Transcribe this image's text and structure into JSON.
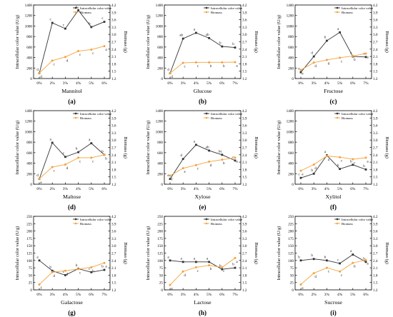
{
  "figure": {
    "legend_labels": {
      "color": "Intracellular color value",
      "biomass": "Biomass"
    },
    "y1_label": "Intracellular color value (U/g)",
    "y2_label": "Biomass (g)",
    "colors": {
      "color_series": "#333333",
      "biomass_series": "#f5a23c",
      "axis": "#000000"
    }
  },
  "chart_data": [
    {
      "type": "line",
      "panel": "(a)",
      "xlabel": "Mannitol",
      "categories": [
        "0%",
        "2%",
        "3%",
        "4%",
        "5%",
        "6%"
      ],
      "y1lim": [
        0,
        1400
      ],
      "y1ticks": [
        0,
        200,
        400,
        600,
        800,
        1000,
        1200,
        1400
      ],
      "y2lim": [
        1.2,
        4.2
      ],
      "y2ticks": [
        1.2,
        1.5,
        1.8,
        2.1,
        2.4,
        2.7,
        3.0,
        3.3,
        3.6,
        3.9,
        4.2
      ],
      "series": [
        {
          "name": "Intracellular color value",
          "axis": "left",
          "values": [
            100,
            1060,
            950,
            1300,
            980,
            1080
          ],
          "labels": [
            "d",
            "c",
            "c",
            "a",
            "b",
            "c"
          ]
        },
        {
          "name": "Biomass",
          "axis": "right",
          "values": [
            1.42,
            1.93,
            2.08,
            2.32,
            2.38,
            2.52
          ],
          "labels": [
            "d",
            "c",
            "d",
            "c",
            "c",
            "a"
          ]
        }
      ]
    },
    {
      "type": "line",
      "panel": "(b)",
      "xlabel": "Glucose",
      "categories": [
        "0%",
        "3%",
        "4%",
        "5%",
        "6%",
        "7%"
      ],
      "y1lim": [
        0,
        1400
      ],
      "y1ticks": [
        0,
        200,
        400,
        600,
        800,
        1000,
        1200,
        1400
      ],
      "y2lim": [
        1.2,
        4.2
      ],
      "y2ticks": [
        1.2,
        1.5,
        1.8,
        2.1,
        2.4,
        2.7,
        3.0,
        3.3,
        3.6,
        3.9,
        4.2
      ],
      "series": [
        {
          "name": "Intracellular color value",
          "axis": "left",
          "values": [
            100,
            760,
            870,
            770,
            610,
            590
          ],
          "labels": [
            "d",
            "ab",
            "a",
            "ab",
            "b",
            "b"
          ]
        },
        {
          "name": "Biomass",
          "axis": "right",
          "values": [
            1.42,
            1.84,
            1.86,
            1.86,
            1.86,
            1.87
          ],
          "labels": [
            "d",
            "c",
            "c",
            "b",
            "b",
            "a"
          ]
        }
      ]
    },
    {
      "type": "line",
      "panel": "(c)",
      "xlabel": "Fructose",
      "categories": [
        "0%",
        "3%",
        "4%",
        "5%",
        "6%",
        "7%"
      ],
      "y1lim": [
        0,
        1400
      ],
      "y1ticks": [
        0,
        200,
        400,
        600,
        800,
        1000,
        1200,
        1400
      ],
      "y2lim": [
        1.2,
        4.2
      ],
      "y2ticks": [
        1.2,
        1.5,
        1.8,
        2.1,
        2.4,
        2.7,
        3.0,
        3.3,
        3.6,
        3.9,
        4.2
      ],
      "series": [
        {
          "name": "Intracellular color value",
          "axis": "left",
          "values": [
            120,
            420,
            720,
            880,
            420,
            410
          ],
          "labels": [
            "e",
            "d",
            "b",
            "a",
            "c",
            "c"
          ]
        },
        {
          "name": "Biomass",
          "axis": "right",
          "values": [
            1.55,
            1.85,
            1.96,
            2.05,
            2.12,
            2.22
          ],
          "labels": [
            "e",
            "d",
            "d",
            "c",
            "b",
            "a"
          ]
        }
      ]
    },
    {
      "type": "line",
      "panel": "(d)",
      "xlabel": "Maltose",
      "categories": [
        "0%",
        "2%",
        "3%",
        "4%",
        "5%",
        "6%"
      ],
      "y1lim": [
        0,
        1400
      ],
      "y1ticks": [
        0,
        200,
        400,
        600,
        800,
        1000,
        1200,
        1400
      ],
      "y2lim": [
        1.2,
        4.2
      ],
      "y2ticks": [
        1.2,
        1.5,
        1.8,
        2.1,
        2.4,
        2.7,
        3.0,
        3.3,
        3.6,
        3.9,
        4.2
      ],
      "series": [
        {
          "name": "Intracellular color value",
          "axis": "left",
          "values": [
            100,
            790,
            520,
            610,
            780,
            560
          ],
          "labels": [
            "d",
            "a",
            "c",
            "b",
            "a",
            "b"
          ]
        },
        {
          "name": "Biomass",
          "axis": "right",
          "values": [
            1.42,
            1.9,
            2.0,
            2.28,
            2.28,
            2.4
          ],
          "labels": [
            "e",
            "c",
            "d",
            "c",
            "c",
            "b"
          ]
        }
      ]
    },
    {
      "type": "line",
      "panel": "(e)",
      "xlabel": "Xylose",
      "categories": [
        "0%",
        "3%",
        "4%",
        "5%",
        "6%",
        "7%"
      ],
      "y1lim": [
        0,
        1400
      ],
      "y1ticks": [
        0,
        200,
        400,
        600,
        800,
        1000,
        1200,
        1400
      ],
      "y2lim": [
        1.2,
        4.2
      ],
      "y2ticks": [
        1.2,
        1.5,
        1.8,
        2.1,
        2.4,
        2.7,
        3.0,
        3.3,
        3.6,
        3.9,
        4.2
      ],
      "series": [
        {
          "name": "Intracellular color value",
          "axis": "left",
          "values": [
            100,
            480,
            750,
            640,
            560,
            450
          ],
          "labels": [
            "e",
            "d",
            "a",
            "ab",
            "bc",
            "c"
          ]
        },
        {
          "name": "Biomass",
          "axis": "right",
          "values": [
            1.55,
            1.85,
            1.98,
            2.12,
            2.2,
            2.28
          ],
          "labels": [
            "f",
            "e",
            "c",
            "d",
            "b",
            "a"
          ]
        }
      ]
    },
    {
      "type": "line",
      "panel": "(f)",
      "xlabel": "Xylitol",
      "categories": [
        "0%",
        "3%",
        "4%",
        "5%",
        "6%",
        "7%"
      ],
      "y1lim": [
        0,
        1400
      ],
      "y1ticks": [
        0,
        200,
        400,
        600,
        800,
        1000,
        1200,
        1400
      ],
      "y2lim": [
        1.2,
        4.2
      ],
      "y2ticks": [
        1.2,
        1.5,
        1.8,
        2.1,
        2.4,
        2.7,
        3.0,
        3.3,
        3.6,
        3.9,
        4.2
      ],
      "series": [
        {
          "name": "Intracellular color value",
          "axis": "left",
          "values": [
            120,
            200,
            550,
            290,
            370,
            280
          ],
          "labels": [
            "c",
            "b",
            "a",
            "b",
            "b",
            "b"
          ]
        },
        {
          "name": "Biomass",
          "axis": "right",
          "values": [
            1.75,
            2.0,
            2.35,
            2.3,
            2.22,
            2.28
          ],
          "labels": [
            "e",
            "d",
            "a",
            "c",
            "c",
            "a"
          ]
        }
      ]
    },
    {
      "type": "line",
      "panel": "(g)",
      "xlabel": "Galactose",
      "categories": [
        "0%",
        "3%",
        "4%",
        "5%",
        "6%",
        "7%"
      ],
      "y1lim": [
        0,
        250
      ],
      "y1ticks": [
        0,
        25,
        50,
        75,
        100,
        125,
        150,
        175,
        200,
        225,
        250
      ],
      "y2lim": [
        1.2,
        4.2
      ],
      "y2ticks": [
        1.2,
        1.5,
        1.8,
        2.1,
        2.4,
        2.7,
        3.0,
        3.3,
        3.6,
        3.9,
        4.2
      ],
      "series": [
        {
          "name": "Intracellular color value",
          "axis": "left",
          "values": [
            100,
            65,
            50,
            72,
            60,
            68
          ],
          "labels": [
            "a",
            "b",
            "c",
            "b",
            "c",
            "b"
          ]
        },
        {
          "name": "Biomass",
          "axis": "right",
          "values": [
            1.42,
            1.92,
            1.98,
            2.05,
            2.12,
            2.3
          ],
          "labels": [
            "f",
            "d",
            "d",
            "c",
            "b",
            "a"
          ]
        }
      ]
    },
    {
      "type": "line",
      "panel": "(h)",
      "xlabel": "Lactose",
      "categories": [
        "0%",
        "3%",
        "4%",
        "5%",
        "6%",
        "7%"
      ],
      "y1lim": [
        0,
        250
      ],
      "y1ticks": [
        0,
        25,
        50,
        75,
        100,
        125,
        150,
        175,
        200,
        225,
        250
      ],
      "y2lim": [
        1.2,
        4.2
      ],
      "y2ticks": [
        1.2,
        1.5,
        1.8,
        2.1,
        2.4,
        2.7,
        3.0,
        3.3,
        3.6,
        3.9,
        4.2
      ],
      "series": [
        {
          "name": "Intracellular color value",
          "axis": "left",
          "values": [
            100,
            95,
            95,
            95,
            70,
            75
          ],
          "labels": [
            "a",
            "a",
            "a",
            "a",
            "b",
            "b"
          ]
        },
        {
          "name": "Biomass",
          "axis": "right",
          "values": [
            1.4,
            1.95,
            2.12,
            2.2,
            2.12,
            2.5
          ],
          "labels": [
            "e",
            "d",
            "c",
            "b",
            "c",
            "a"
          ]
        }
      ]
    },
    {
      "type": "line",
      "panel": "(i)",
      "xlabel": "Sucrose",
      "categories": [
        "0%",
        "2%",
        "3%",
        "4%",
        "5%",
        "6%"
      ],
      "y1lim": [
        0,
        250
      ],
      "y1ticks": [
        0,
        25,
        50,
        75,
        100,
        125,
        150,
        175,
        200,
        225,
        250
      ],
      "y2lim": [
        1.2,
        4.2
      ],
      "y2ticks": [
        1.2,
        1.5,
        1.8,
        2.1,
        2.4,
        2.7,
        3.0,
        3.3,
        3.6,
        3.9,
        4.2
      ],
      "series": [
        {
          "name": "Intracellular color value",
          "axis": "left",
          "values": [
            100,
            105,
            100,
            90,
            120,
            95
          ],
          "labels": [
            "b",
            "b",
            "b",
            "c",
            "a",
            "b"
          ]
        },
        {
          "name": "Biomass",
          "axis": "right",
          "values": [
            1.42,
            1.88,
            2.1,
            1.95,
            2.3,
            2.42
          ],
          "labels": [
            "e",
            "d",
            "c",
            "c",
            "b",
            "a"
          ]
        }
      ]
    }
  ]
}
